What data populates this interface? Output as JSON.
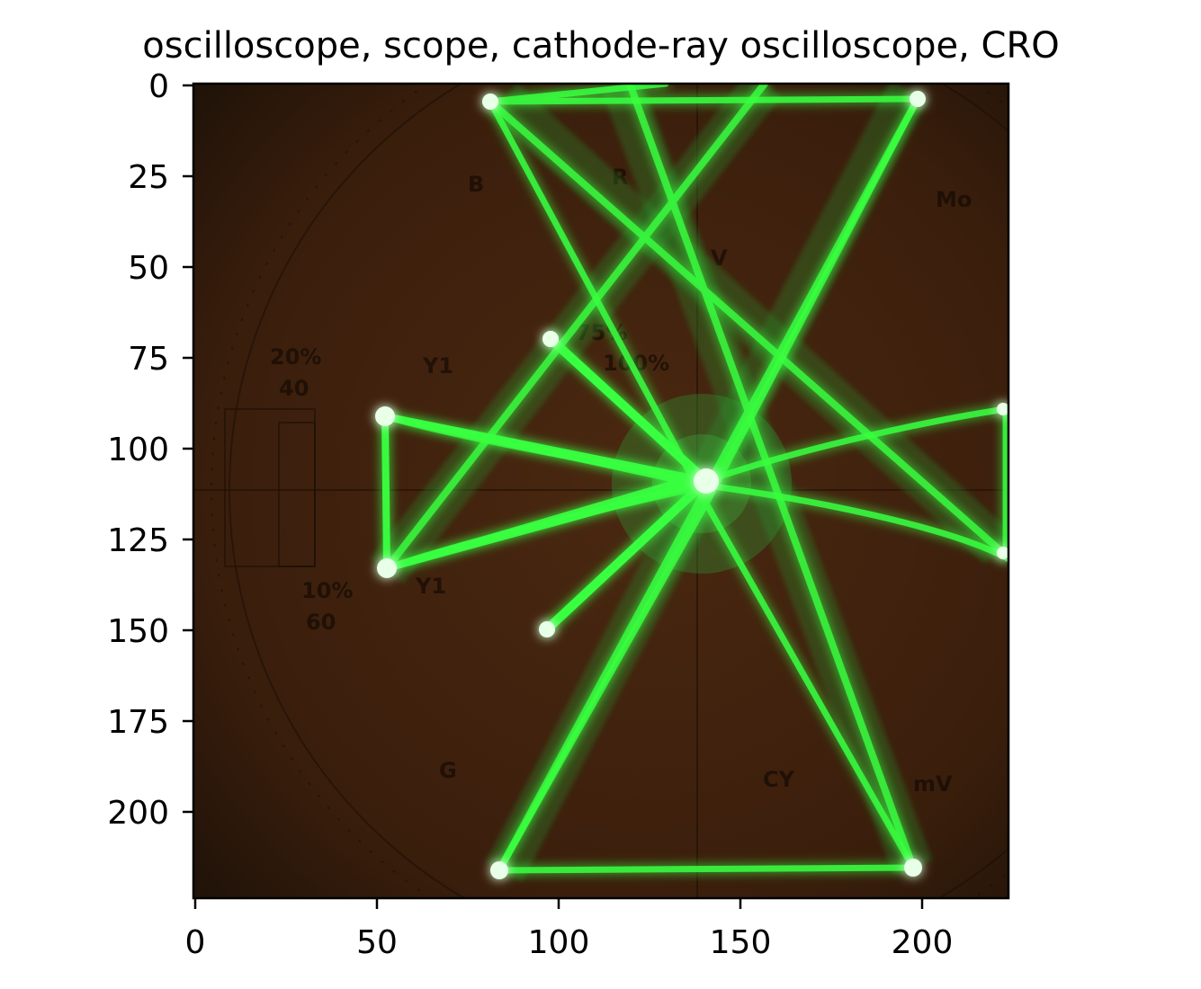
{
  "figure": {
    "title": "oscilloscope, scope, cathode-ray oscilloscope, CRO"
  },
  "image": {
    "subject": "oscilloscope screen showing green Lissajous traces over a graticule",
    "background_color": "#3a1e0c",
    "trace_color": "#38ff40",
    "graticule_marks": [
      "75%",
      "100%",
      "20%",
      "40",
      "10%",
      "60",
      "R",
      "V",
      "Mo",
      "Y1",
      "Y1",
      "G",
      "CY",
      "mV",
      "B"
    ]
  },
  "axes": {
    "x_ticks": [
      "0",
      "50",
      "100",
      "150",
      "200"
    ],
    "y_ticks": [
      "0",
      "25",
      "50",
      "75",
      "100",
      "125",
      "150",
      "175",
      "200"
    ],
    "xlim": [
      0,
      224
    ],
    "ylim": [
      224,
      0
    ]
  }
}
